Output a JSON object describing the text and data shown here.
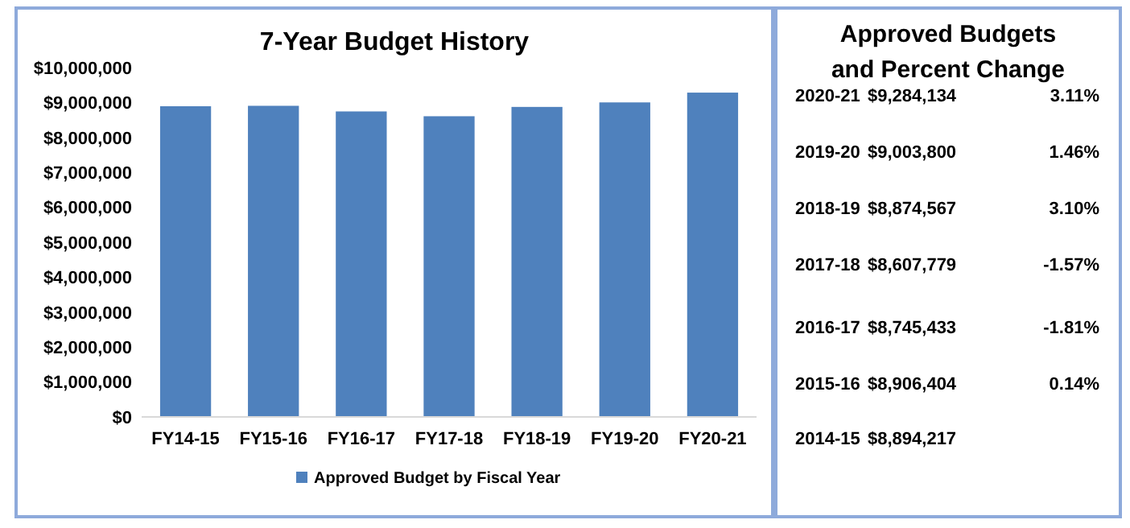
{
  "chart_data": [
    {
      "type": "bar",
      "title": "7-Year Budget History",
      "categories": [
        "FY14-15",
        "FY15-16",
        "FY16-17",
        "FY17-18",
        "FY18-19",
        "FY19-20",
        "FY20-21"
      ],
      "series": [
        {
          "name": "Approved Budget by Fiscal Year",
          "color": "#4f81bd",
          "values": [
            8894217,
            8906404,
            8745433,
            8607779,
            8874567,
            9003800,
            9284134
          ]
        }
      ],
      "ylim": [
        0,
        10000000
      ],
      "yticks": [
        {
          "value": 0,
          "label": "$0"
        },
        {
          "value": 1000000,
          "label": "$1,000,000"
        },
        {
          "value": 2000000,
          "label": "$2,000,000"
        },
        {
          "value": 3000000,
          "label": "$3,000,000"
        },
        {
          "value": 4000000,
          "label": "$4,000,000"
        },
        {
          "value": 5000000,
          "label": "$5,000,000"
        },
        {
          "value": 6000000,
          "label": "$6,000,000"
        },
        {
          "value": 7000000,
          "label": "$7,000,000"
        },
        {
          "value": 8000000,
          "label": "$8,000,000"
        },
        {
          "value": 9000000,
          "label": "$9,000,000"
        },
        {
          "value": 10000000,
          "label": "$10,000,000"
        }
      ],
      "grid": false,
      "legend": "bottom"
    },
    {
      "type": "other",
      "title": "Approved Budgets and Percent Change",
      "categories": [
        "2020-21",
        "2019-20",
        "2018-19",
        "2017-18",
        "2016-17",
        "2015-16",
        "2014-15"
      ],
      "series": [
        {
          "values": [
            9284134,
            9003800,
            8874567,
            8607779,
            8745433,
            8906404,
            8894217
          ],
          "value_labels": [
            "$9,284,134",
            "$9,003,800",
            "$8,874,567",
            "$8,607,779",
            "$8,745,433",
            "$8,906,404",
            "$8,894,217"
          ]
        },
        {
          "values": [
            3.11,
            1.46,
            3.1,
            -1.57,
            -1.81,
            0.14,
            null
          ],
          "value_labels": [
            "3.11%",
            "1.46%",
            "3.10%",
            "-1.57%",
            "-1.81%",
            "0.14%",
            null
          ]
        }
      ]
    }
  ]
}
